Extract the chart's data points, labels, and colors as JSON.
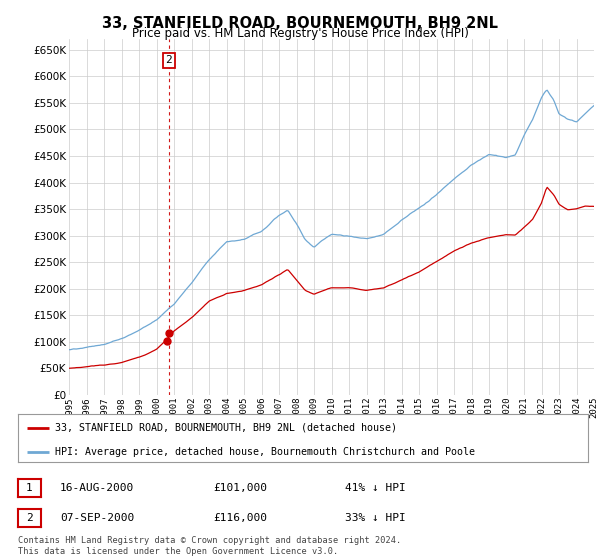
{
  "title": "33, STANFIELD ROAD, BOURNEMOUTH, BH9 2NL",
  "subtitle": "Price paid vs. HM Land Registry's House Price Index (HPI)",
  "ylim": [
    0,
    670000
  ],
  "yticks": [
    0,
    50000,
    100000,
    150000,
    200000,
    250000,
    300000,
    350000,
    400000,
    450000,
    500000,
    550000,
    600000,
    650000
  ],
  "hpi_color": "#6fa8d4",
  "price_color": "#cc0000",
  "legend_label_price": "33, STANFIELD ROAD, BOURNEMOUTH, BH9 2NL (detached house)",
  "legend_label_hpi": "HPI: Average price, detached house, Bournemouth Christchurch and Poole",
  "transaction1_date": "16-AUG-2000",
  "transaction1_price": "£101,000",
  "transaction1_hpi": "41% ↓ HPI",
  "transaction2_date": "07-SEP-2000",
  "transaction2_price": "£116,000",
  "transaction2_hpi": "33% ↓ HPI",
  "footnote": "Contains HM Land Registry data © Crown copyright and database right 2024.\nThis data is licensed under the Open Government Licence v3.0.",
  "background_color": "#ffffff",
  "grid_color": "#cccccc",
  "annotation_box_color": "#cc0000"
}
